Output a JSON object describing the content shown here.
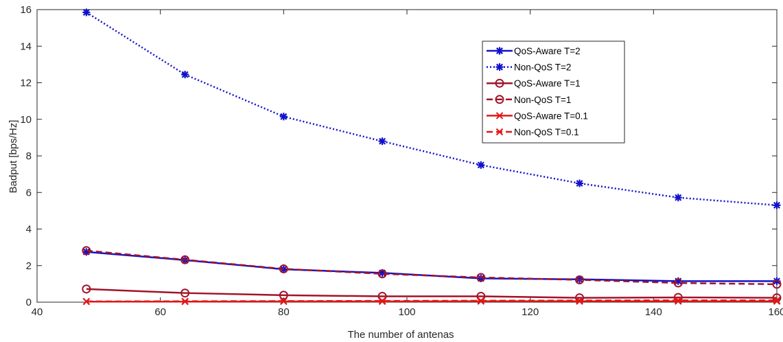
{
  "chart_data": {
    "type": "line",
    "title": "",
    "xlabel": "The number of antenas",
    "ylabel": "Badput [bps/Hz]",
    "xlim": [
      40,
      160
    ],
    "ylim": [
      0,
      16
    ],
    "xticks": [
      40,
      60,
      80,
      100,
      120,
      140,
      160
    ],
    "yticks": [
      0,
      2,
      4,
      6,
      8,
      10,
      12,
      14,
      16
    ],
    "grid": false,
    "legend_position": "top-right",
    "x": [
      48,
      64,
      80,
      96,
      112,
      128,
      144,
      160
    ],
    "series": [
      {
        "name": "QoS-Aware T=2",
        "color": "#1111cc",
        "line_style": "solid",
        "marker": "asterisk",
        "values": [
          2.75,
          2.3,
          1.8,
          1.6,
          1.3,
          1.25,
          1.15,
          1.15
        ]
      },
      {
        "name": "Non-QoS T=2",
        "color": "#1111cc",
        "line_style": "dotted",
        "marker": "asterisk",
        "values": [
          15.85,
          12.45,
          10.15,
          8.8,
          7.5,
          6.5,
          5.72,
          5.3
        ]
      },
      {
        "name": "QoS-Aware T=1",
        "color": "#a0142a",
        "line_style": "solid",
        "marker": "circle",
        "values": [
          0.72,
          0.5,
          0.38,
          0.32,
          0.32,
          0.24,
          0.26,
          0.24
        ]
      },
      {
        "name": "Non-QoS T=1",
        "color": "#a0142a",
        "line_style": "dashed",
        "marker": "circle",
        "values": [
          2.82,
          2.32,
          1.82,
          1.55,
          1.35,
          1.22,
          1.05,
          0.98
        ]
      },
      {
        "name": "QoS-Aware T=0.1",
        "color": "#e01818",
        "line_style": "solid",
        "marker": "x",
        "values": [
          0.03,
          0.03,
          0.04,
          0.04,
          0.05,
          0.05,
          0.05,
          0.05
        ]
      },
      {
        "name": "Non-QoS T=0.1",
        "color": "#e01818",
        "line_style": "dashed",
        "marker": "x",
        "values": [
          0.04,
          0.05,
          0.06,
          0.07,
          0.08,
          0.09,
          0.1,
          0.1
        ]
      }
    ]
  }
}
